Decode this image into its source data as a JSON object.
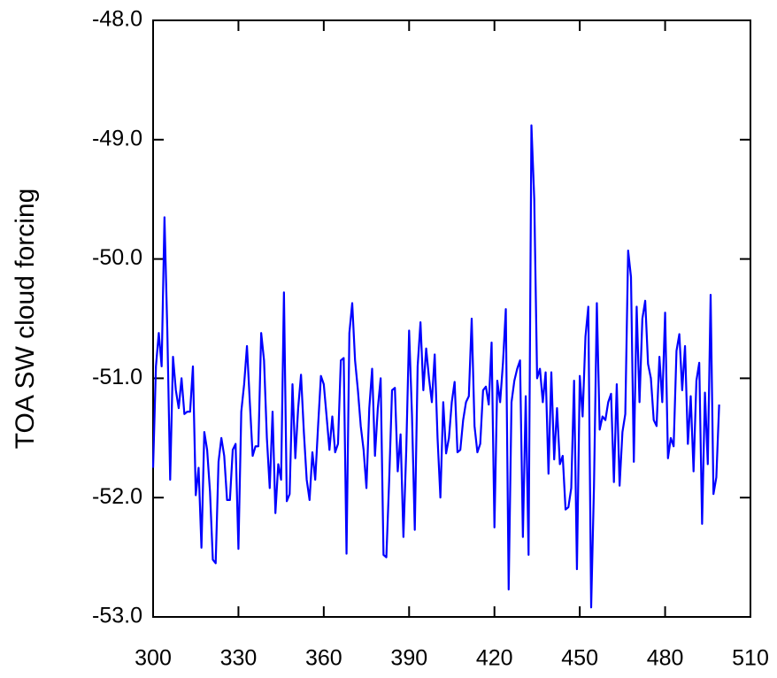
{
  "chart_data": {
    "type": "line",
    "ylabel": "TOA SW cloud forcing",
    "x": [
      300,
      301,
      302,
      303,
      304,
      305,
      306,
      307,
      308,
      309,
      310,
      311,
      312,
      313,
      314,
      315,
      316,
      317,
      318,
      319,
      320,
      321,
      322,
      323,
      324,
      325,
      326,
      327,
      328,
      329,
      330,
      331,
      332,
      333,
      334,
      335,
      336,
      337,
      338,
      339,
      340,
      341,
      342,
      343,
      344,
      345,
      346,
      347,
      348,
      349,
      350,
      351,
      352,
      353,
      354,
      355,
      356,
      357,
      358,
      359,
      360,
      361,
      362,
      363,
      364,
      365,
      366,
      367,
      368,
      369,
      370,
      371,
      372,
      373,
      374,
      375,
      376,
      377,
      378,
      379,
      380,
      381,
      382,
      383,
      384,
      385,
      386,
      387,
      388,
      389,
      390,
      391,
      392,
      393,
      394,
      395,
      396,
      397,
      398,
      399,
      400,
      401,
      402,
      403,
      404,
      405,
      406,
      407,
      408,
      409,
      410,
      411,
      412,
      413,
      414,
      415,
      416,
      417,
      418,
      419,
      420,
      421,
      422,
      423,
      424,
      425,
      426,
      427,
      428,
      429,
      430,
      431,
      432,
      433,
      434,
      435,
      436,
      437,
      438,
      439,
      440,
      441,
      442,
      443,
      444,
      445,
      446,
      447,
      448,
      449,
      450,
      451,
      452,
      453,
      454,
      455,
      456,
      457,
      458,
      459,
      460,
      461,
      462,
      463,
      464,
      465,
      466,
      467,
      468,
      469,
      470,
      471,
      472,
      473,
      474,
      475,
      476,
      477,
      478,
      479,
      480,
      481,
      482,
      483,
      484,
      485,
      486,
      487,
      488,
      489,
      490,
      491,
      492,
      493,
      494,
      495,
      496,
      497,
      498,
      499
    ],
    "series": [
      {
        "color": "#0000ff",
        "values": [
          -51.75,
          -50.9,
          -50.62,
          -50.9,
          -49.65,
          -50.6,
          -51.85,
          -50.82,
          -51.1,
          -51.25,
          -51.0,
          -51.3,
          -51.28,
          -51.28,
          -50.9,
          -51.98,
          -51.75,
          -52.42,
          -51.45,
          -51.6,
          -51.95,
          -52.52,
          -52.55,
          -51.7,
          -51.5,
          -51.65,
          -52.02,
          -52.02,
          -51.6,
          -51.55,
          -52.43,
          -51.28,
          -51.05,
          -50.73,
          -51.2,
          -51.65,
          -51.57,
          -51.57,
          -50.62,
          -50.85,
          -51.5,
          -51.92,
          -51.28,
          -52.13,
          -51.72,
          -51.85,
          -50.28,
          -52.03,
          -51.97,
          -51.05,
          -51.67,
          -51.25,
          -50.97,
          -51.45,
          -51.85,
          -52.02,
          -51.62,
          -51.85,
          -51.4,
          -50.98,
          -51.05,
          -51.32,
          -51.6,
          -51.32,
          -51.62,
          -51.55,
          -50.85,
          -50.83,
          -52.47,
          -50.62,
          -50.37,
          -50.85,
          -51.1,
          -51.4,
          -51.6,
          -51.92,
          -51.25,
          -50.92,
          -51.65,
          -51.25,
          -51.0,
          -52.48,
          -52.5,
          -51.85,
          -51.1,
          -51.08,
          -51.78,
          -51.47,
          -52.33,
          -51.6,
          -50.6,
          -51.3,
          -52.27,
          -50.9,
          -50.53,
          -51.1,
          -50.75,
          -51.0,
          -51.2,
          -50.8,
          -51.5,
          -52.0,
          -51.2,
          -51.63,
          -51.5,
          -51.2,
          -51.03,
          -51.62,
          -51.6,
          -51.35,
          -51.2,
          -51.15,
          -50.5,
          -51.4,
          -51.62,
          -51.55,
          -51.1,
          -51.07,
          -51.22,
          -50.7,
          -52.25,
          -51.02,
          -51.2,
          -50.87,
          -50.42,
          -52.77,
          -51.2,
          -51.02,
          -50.92,
          -50.85,
          -52.33,
          -51.15,
          -52.48,
          -48.88,
          -49.5,
          -51.0,
          -50.92,
          -51.2,
          -50.95,
          -51.8,
          -50.95,
          -51.68,
          -51.25,
          -51.72,
          -51.65,
          -52.1,
          -52.08,
          -51.92,
          -51.02,
          -52.6,
          -50.98,
          -51.32,
          -50.65,
          -50.4,
          -52.92,
          -51.9,
          -50.37,
          -51.43,
          -51.32,
          -51.35,
          -51.2,
          -51.13,
          -51.87,
          -51.05,
          -51.9,
          -51.45,
          -51.3,
          -49.93,
          -50.15,
          -51.7,
          -50.4,
          -51.2,
          -50.5,
          -50.35,
          -50.88,
          -51.0,
          -51.35,
          -51.4,
          -50.82,
          -51.2,
          -50.45,
          -51.67,
          -51.5,
          -51.57,
          -50.77,
          -50.63,
          -51.1,
          -50.73,
          -51.55,
          -51.15,
          -51.78,
          -51.02,
          -50.87,
          -52.22,
          -51.12,
          -51.72,
          -50.3,
          -51.97,
          -51.83,
          -51.22
        ]
      }
    ],
    "xlim": [
      300,
      510
    ],
    "xticks": [
      300,
      330,
      360,
      390,
      420,
      450,
      480,
      510
    ],
    "ylim": [
      -53,
      -48
    ],
    "yticks": [
      {
        "value": -53,
        "label": "-53.0"
      },
      {
        "value": -52,
        "label": "-52.0"
      },
      {
        "value": -51,
        "label": "-51.0"
      },
      {
        "value": -50,
        "label": "-50.0"
      },
      {
        "value": -49,
        "label": "-49.0"
      },
      {
        "value": -48,
        "label": "-48.0"
      }
    ],
    "grid": false
  }
}
